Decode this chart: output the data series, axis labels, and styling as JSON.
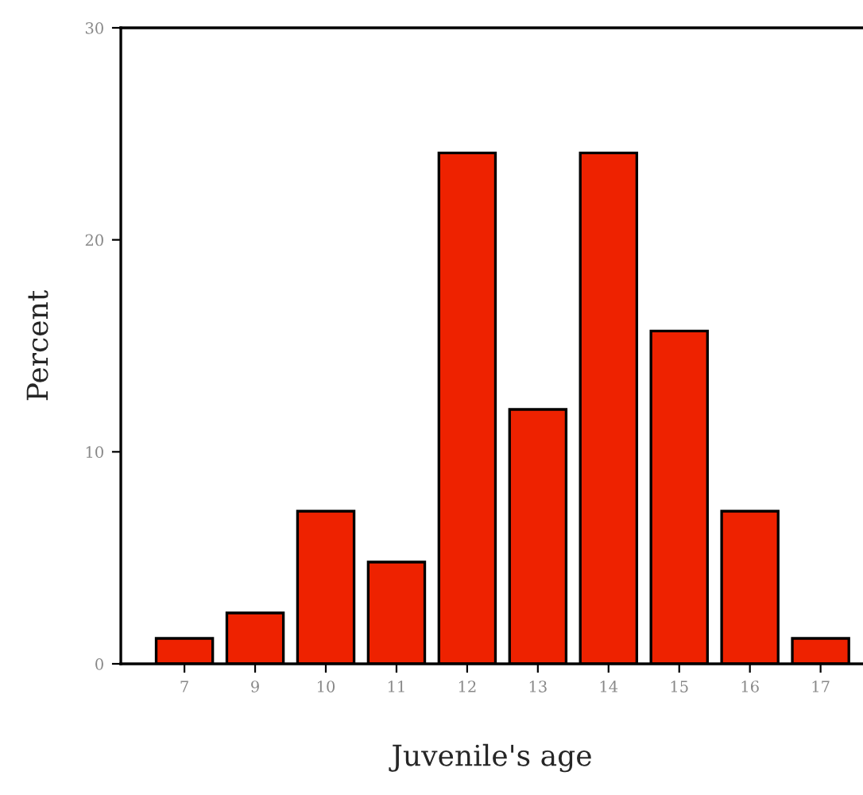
{
  "chart_data": {
    "type": "bar",
    "xlabel": "Juvenile's age",
    "ylabel": "Percent",
    "categories": [
      "7",
      "9",
      "10",
      "11",
      "12",
      "13",
      "14",
      "15",
      "16",
      "17"
    ],
    "series": [
      {
        "color": "#ee2200",
        "values": [
          1.2,
          2.4,
          7.2,
          4.8,
          24.1,
          12.0,
          24.1,
          15.7,
          7.2,
          1.2
        ]
      }
    ],
    "ylim": [
      0,
      30
    ],
    "yticks": [
      0,
      10,
      20,
      30
    ],
    "grid": false,
    "legend": false
  }
}
